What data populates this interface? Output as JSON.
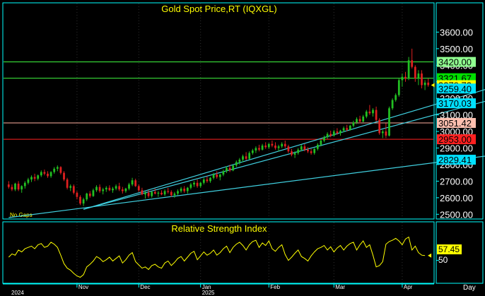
{
  "window": {
    "no_gaps_label": "No Gaps",
    "day_label": "Day"
  },
  "price_panel": {
    "title": "Gold Spot Price,RT (IQXGL)"
  },
  "rsi_panel": {
    "title": "Relative Strength Index",
    "current_value_label": "57.45",
    "axis_label": "50"
  },
  "colors": {
    "background": "#000000",
    "panel_border": "#00ffff",
    "title_text": "#ffff00",
    "bull_candle": "#22c022",
    "bear_candle": "#e02020",
    "trendline": "#40d0e0",
    "rsi_line": "#ffff00"
  },
  "chart_data": [
    {
      "type": "candlestick",
      "title": "Gold Spot Price,RT (IQXGL)",
      "ylim": [
        2480,
        3700
      ],
      "y_ticks": [
        "3600.00",
        "3500.00",
        "3400.00",
        "3300.00",
        "3200.00",
        "3100.00",
        "3000.00",
        "2900.00",
        "2800.00",
        "2700.00",
        "2600.00",
        "2500.00"
      ],
      "y_tick_values": [
        3600,
        3500,
        3400,
        3300,
        3200,
        3100,
        3000,
        2900,
        2800,
        2700,
        2600,
        2500
      ],
      "x_ticks": [
        "Nov",
        "Dec",
        "Jan",
        "Feb",
        "Mar",
        "Apr"
      ],
      "x_tick_index": [
        21,
        40,
        59,
        80,
        100,
        121
      ],
      "year_labels": [
        {
          "text": "2024",
          "index": 0
        },
        {
          "text": "2025",
          "index": 59
        }
      ],
      "horizontal_levels": [
        {
          "value": 3420.0,
          "label": "3420.00",
          "color": "#40ff40",
          "label_bg": "#90ff90",
          "label_fg": "#000000"
        },
        {
          "value": 3321.67,
          "label": "3321.67",
          "color": "#40ff40",
          "label_bg": "#00e000",
          "label_fg": "#000000"
        },
        {
          "value": 3051.42,
          "label": "3051.42",
          "color": "#ffb0a0",
          "label_bg": "#ffc0b0",
          "label_fg": "#000000"
        },
        {
          "value": 2953.0,
          "label": "2953.00",
          "color": "#ff2020",
          "label_bg": "#ff2020",
          "label_fg": "#000000"
        }
      ],
      "value_labels": [
        {
          "value": 3279.72,
          "label": "3279.72",
          "bg": "#ffff00",
          "fg": "#000000"
        },
        {
          "value": 3259.4,
          "label": "3259.40",
          "bg": "#00e0ff",
          "fg": "#000000"
        },
        {
          "value": 3170.03,
          "label": "3170.03",
          "bg": "#00e0ff",
          "fg": "#000000"
        },
        {
          "value": 2829.41,
          "label": "2829.41",
          "bg": "#00e0ff",
          "fg": "#000000"
        }
      ],
      "trendlines": [
        {
          "from": [
            0,
            2480
          ],
          "to": [
            148,
            2855
          ]
        },
        {
          "from": [
            23,
            2530
          ],
          "to": [
            148,
            3190
          ]
        },
        {
          "from": [
            23,
            2530
          ],
          "to": [
            148,
            3262
          ]
        }
      ],
      "series": [
        {
          "name": "Gold Spot",
          "ohlc": [
            [
              2680,
              2700,
              2655,
              2665
            ],
            [
              2665,
              2680,
              2640,
              2650
            ],
            [
              2650,
              2690,
              2640,
              2685
            ],
            [
              2685,
              2700,
              2640,
              2650
            ],
            [
              2650,
              2675,
              2630,
              2670
            ],
            [
              2670,
              2700,
              2655,
              2690
            ],
            [
              2690,
              2720,
              2680,
              2710
            ],
            [
              2710,
              2735,
              2695,
              2725
            ],
            [
              2725,
              2745,
              2700,
              2715
            ],
            [
              2715,
              2740,
              2705,
              2735
            ],
            [
              2735,
              2765,
              2725,
              2755
            ],
            [
              2755,
              2770,
              2735,
              2745
            ],
            [
              2745,
              2760,
              2720,
              2730
            ],
            [
              2730,
              2760,
              2720,
              2755
            ],
            [
              2755,
              2785,
              2745,
              2775
            ],
            [
              2775,
              2795,
              2760,
              2785
            ],
            [
              2785,
              2790,
              2740,
              2750
            ],
            [
              2750,
              2760,
              2700,
              2710
            ],
            [
              2710,
              2720,
              2650,
              2660
            ],
            [
              2660,
              2680,
              2640,
              2670
            ],
            [
              2670,
              2680,
              2620,
              2630
            ],
            [
              2630,
              2640,
              2590,
              2605
            ],
            [
              2605,
              2615,
              2555,
              2565
            ],
            [
              2565,
              2600,
              2550,
              2590
            ],
            [
              2590,
              2630,
              2580,
              2625
            ],
            [
              2625,
              2640,
              2600,
              2610
            ],
            [
              2610,
              2655,
              2605,
              2645
            ],
            [
              2645,
              2675,
              2635,
              2665
            ],
            [
              2665,
              2680,
              2630,
              2640
            ],
            [
              2640,
              2660,
              2620,
              2650
            ],
            [
              2650,
              2670,
              2635,
              2660
            ],
            [
              2660,
              2675,
              2640,
              2645
            ],
            [
              2645,
              2665,
              2630,
              2655
            ],
            [
              2655,
              2680,
              2645,
              2670
            ],
            [
              2670,
              2690,
              2640,
              2650
            ],
            [
              2650,
              2665,
              2625,
              2640
            ],
            [
              2640,
              2660,
              2630,
              2655
            ],
            [
              2655,
              2690,
              2645,
              2680
            ],
            [
              2680,
              2720,
              2670,
              2705
            ],
            [
              2705,
              2715,
              2665,
              2670
            ],
            [
              2670,
              2680,
              2635,
              2645
            ],
            [
              2645,
              2660,
              2615,
              2620
            ],
            [
              2620,
              2640,
              2595,
              2630
            ],
            [
              2630,
              2645,
              2600,
              2610
            ],
            [
              2610,
              2640,
              2600,
              2635
            ],
            [
              2635,
              2655,
              2620,
              2625
            ],
            [
              2625,
              2640,
              2605,
              2630
            ],
            [
              2630,
              2645,
              2615,
              2620
            ],
            [
              2620,
              2650,
              2610,
              2640
            ],
            [
              2640,
              2660,
              2625,
              2635
            ],
            [
              2635,
              2645,
              2605,
              2615
            ],
            [
              2615,
              2635,
              2600,
              2625
            ],
            [
              2625,
              2650,
              2615,
              2640
            ],
            [
              2640,
              2665,
              2630,
              2655
            ],
            [
              2655,
              2670,
              2630,
              2640
            ],
            [
              2640,
              2665,
              2625,
              2660
            ],
            [
              2660,
              2690,
              2650,
              2680
            ],
            [
              2680,
              2700,
              2665,
              2690
            ],
            [
              2690,
              2710,
              2660,
              2670
            ],
            [
              2670,
              2695,
              2660,
              2690
            ],
            [
              2690,
              2720,
              2680,
              2710
            ],
            [
              2710,
              2730,
              2690,
              2700
            ],
            [
              2700,
              2725,
              2690,
              2720
            ],
            [
              2720,
              2750,
              2710,
              2740
            ],
            [
              2740,
              2760,
              2715,
              2725
            ],
            [
              2725,
              2745,
              2705,
              2740
            ],
            [
              2740,
              2770,
              2730,
              2760
            ],
            [
              2760,
              2790,
              2750,
              2780
            ],
            [
              2780,
              2800,
              2755,
              2765
            ],
            [
              2765,
              2800,
              2760,
              2795
            ],
            [
              2795,
              2825,
              2785,
              2815
            ],
            [
              2815,
              2840,
              2800,
              2830
            ],
            [
              2830,
              2860,
              2815,
              2850
            ],
            [
              2850,
              2875,
              2825,
              2835
            ],
            [
              2835,
              2880,
              2830,
              2870
            ],
            [
              2870,
              2895,
              2860,
              2885
            ],
            [
              2885,
              2910,
              2870,
              2900
            ],
            [
              2900,
              2920,
              2880,
              2890
            ],
            [
              2890,
              2925,
              2885,
              2915
            ],
            [
              2915,
              2935,
              2895,
              2905
            ],
            [
              2905,
              2930,
              2895,
              2925
            ],
            [
              2925,
              2945,
              2905,
              2915
            ],
            [
              2915,
              2935,
              2890,
              2900
            ],
            [
              2900,
              2920,
              2880,
              2910
            ],
            [
              2910,
              2935,
              2900,
              2925
            ],
            [
              2925,
              2945,
              2900,
              2910
            ],
            [
              2910,
              2920,
              2870,
              2880
            ],
            [
              2880,
              2895,
              2850,
              2860
            ],
            [
              2860,
              2880,
              2840,
              2870
            ],
            [
              2870,
              2900,
              2860,
              2890
            ],
            [
              2890,
              2920,
              2880,
              2910
            ],
            [
              2910,
              2925,
              2880,
              2890
            ],
            [
              2890,
              2905,
              2870,
              2880
            ],
            [
              2880,
              2895,
              2860,
              2870
            ],
            [
              2870,
              2900,
              2860,
              2895
            ],
            [
              2895,
              2930,
              2885,
              2920
            ],
            [
              2920,
              2950,
              2910,
              2945
            ],
            [
              2945,
              2975,
              2935,
              2965
            ],
            [
              2965,
              2995,
              2955,
              2985
            ],
            [
              2985,
              3005,
              2965,
              2975
            ],
            [
              2975,
              3010,
              2970,
              3000
            ],
            [
              3000,
              3020,
              2980,
              2990
            ],
            [
              2990,
              3010,
              2975,
              3005
            ],
            [
              3005,
              3030,
              2995,
              3020
            ],
            [
              3020,
              3040,
              3000,
              3010
            ],
            [
              3010,
              3040,
              3005,
              3035
            ],
            [
              3035,
              3065,
              3025,
              3055
            ],
            [
              3055,
              3085,
              3045,
              3075
            ],
            [
              3075,
              3095,
              3050,
              3060
            ],
            [
              3060,
              3100,
              3055,
              3090
            ],
            [
              3090,
              3130,
              3080,
              3120
            ],
            [
              3120,
              3160,
              3100,
              3110
            ],
            [
              3110,
              3140,
              3090,
              3130
            ],
            [
              3130,
              3150,
              3060,
              3070
            ],
            [
              3070,
              3080,
              2980,
              2990
            ],
            [
              2990,
              3010,
              2960,
              3000
            ],
            [
              3000,
              3050,
              2960,
              2975
            ],
            [
              2975,
              3150,
              2970,
              3140
            ],
            [
              3140,
              3200,
              3130,
              3190
            ],
            [
              3190,
              3230,
              3180,
              3220
            ],
            [
              3220,
              3320,
              3210,
              3310
            ],
            [
              3310,
              3350,
              3270,
              3330
            ],
            [
              3330,
              3360,
              3300,
              3320
            ],
            [
              3320,
              3450,
              3310,
              3430
            ],
            [
              3430,
              3500,
              3380,
              3390
            ],
            [
              3390,
              3400,
              3300,
              3320
            ],
            [
              3320,
              3370,
              3280,
              3350
            ],
            [
              3350,
              3370,
              3260,
              3280
            ],
            [
              3280,
              3310,
              3250,
              3295
            ],
            [
              3295,
              3320,
              3270,
              3280
            ]
          ]
        }
      ]
    },
    {
      "type": "line",
      "title": "Relative Strength Index",
      "ylim": [
        18,
        92
      ],
      "y_ticks": [
        "50"
      ],
      "y_tick_values": [
        50
      ],
      "series": [
        {
          "name": "Relative Strength Index",
          "values": [
            55,
            60,
            58,
            66,
            63,
            68,
            70,
            72,
            68,
            74,
            76,
            70,
            72,
            78,
            75,
            70,
            58,
            45,
            38,
            35,
            30,
            26,
            24,
            28,
            40,
            44,
            49,
            56,
            53,
            48,
            51,
            55,
            49,
            53,
            57,
            46,
            51,
            58,
            62,
            48,
            43,
            38,
            40,
            36,
            42,
            44,
            40,
            38,
            46,
            49,
            42,
            47,
            53,
            56,
            49,
            55,
            61,
            64,
            51,
            57,
            63,
            58,
            61,
            66,
            58,
            62,
            68,
            72,
            62,
            70,
            75,
            78,
            73,
            66,
            74,
            79,
            81,
            70,
            77,
            73,
            80,
            68,
            64,
            70,
            74,
            59,
            50,
            55,
            61,
            66,
            56,
            53,
            49,
            57,
            63,
            68,
            70,
            73,
            66,
            71,
            63,
            69,
            73,
            66,
            72,
            76,
            78,
            66,
            74,
            80,
            70,
            74,
            58,
            40,
            42,
            48,
            75,
            79,
            81,
            84,
            80,
            74,
            83,
            86,
            66,
            72,
            62,
            58,
            57.45
          ]
        }
      ]
    }
  ]
}
